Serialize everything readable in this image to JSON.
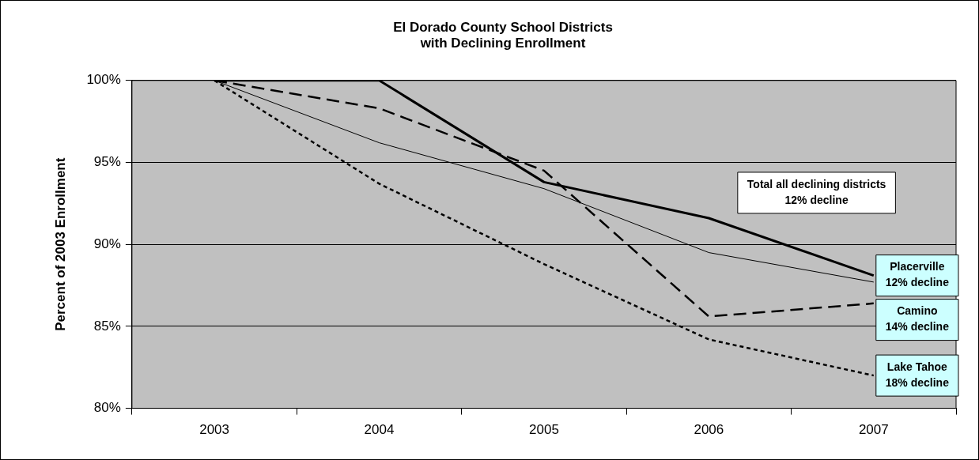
{
  "chart_data": {
    "type": "line",
    "title": "El Dorado County School Districts\nwith Declining Enrollment",
    "ylabel": "Percent of 2003 Enrollment",
    "categories": [
      "2003",
      "2004",
      "2005",
      "2006",
      "2007"
    ],
    "series": [
      {
        "color": "#000000",
        "line_style": "solid",
        "values": [
          100,
          100,
          93.8,
          91.6,
          88.1
        ]
      },
      {
        "color": "#000000",
        "line_style": "solid",
        "values": [
          100,
          96.2,
          93.4,
          89.5,
          87.7
        ]
      },
      {
        "color": "#000000",
        "line_style": "dashed",
        "values": [
          100,
          98.3,
          94.5,
          85.6,
          86.4
        ]
      },
      {
        "color": "#000000",
        "line_style": "dotted",
        "values": [
          100,
          93.7,
          88.8,
          84.2,
          82.0
        ]
      }
    ],
    "ylim": [
      80,
      100
    ],
    "yticks": [
      {
        "value": 80,
        "label": "80%"
      },
      {
        "value": 85,
        "label": "85%"
      },
      {
        "value": 90,
        "label": "90%"
      },
      {
        "value": 95,
        "label": "95%"
      },
      {
        "value": 100,
        "label": "100%"
      }
    ],
    "grid": "y",
    "legend": false,
    "marker": "none",
    "annotations": [
      "Total all declining districts\n12% decline",
      {
        "text": "Placerville\n12% decline",
        "x": "2007",
        "y": 88.1
      },
      {
        "text": "Camino\n14% decline",
        "x": "2007",
        "y": 86.4
      },
      {
        "text": "Lake Tahoe\n18% decline",
        "x": "2007",
        "y": 82.0
      }
    ]
  }
}
